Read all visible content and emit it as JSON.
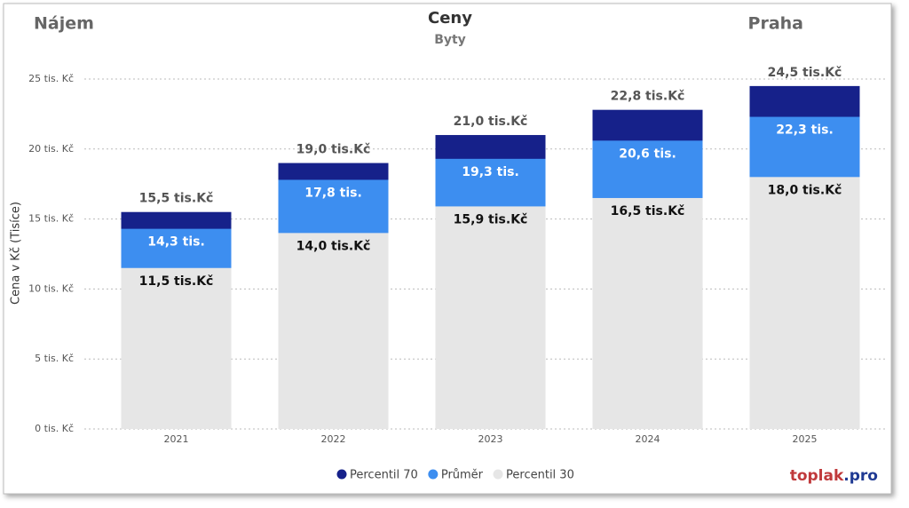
{
  "chart_data": {
    "type": "bar",
    "title": "Ceny",
    "subtitle": "Byty",
    "corner_left": "Nájem",
    "corner_right": "Praha",
    "y_label": "Cena v Kč (Tisíce)",
    "brand": {
      "name": "toplak",
      "suffix": ".pro"
    },
    "categories": [
      "2021",
      "2022",
      "2023",
      "2024",
      "2025"
    ],
    "series": [
      {
        "name": "Percentil 70",
        "color": "#16218a",
        "values": [
          15.5,
          19.0,
          21.0,
          22.8,
          24.5
        ],
        "value_labels": [
          "15,5 tis.Kč",
          "19,0 tis.Kč",
          "21,0 tis.Kč",
          "22,8 tis.Kč",
          "24,5 tis.Kč"
        ]
      },
      {
        "name": "Průměr",
        "color": "#3d8ef0",
        "values": [
          14.3,
          17.8,
          19.3,
          20.6,
          22.3
        ],
        "value_labels": [
          "14,3 tis.",
          "17,8 tis.",
          "19,3 tis.",
          "20,6 tis.",
          "22,3 tis."
        ]
      },
      {
        "name": "Percentil 30",
        "color": "#e6e6e6",
        "values": [
          11.5,
          14.0,
          15.9,
          16.5,
          18.0
        ],
        "value_labels": [
          "11,5 tis.Kč",
          "14,0 tis.Kč",
          "15,9 tis.Kč",
          "16,5 tis.Kč",
          "18,0 tis.Kč"
        ]
      }
    ],
    "ylim": [
      0,
      25
    ],
    "yticks": [
      {
        "value": 0,
        "label": "0 tis. Kč"
      },
      {
        "value": 5,
        "label": "5 tis. Kč"
      },
      {
        "value": 10,
        "label": "10 tis. Kč"
      },
      {
        "value": 15,
        "label": "15 tis. Kč"
      },
      {
        "value": 20,
        "label": "20 tis. Kč"
      },
      {
        "value": 25,
        "label": "25 tis. Kč"
      }
    ],
    "grid": true
  }
}
